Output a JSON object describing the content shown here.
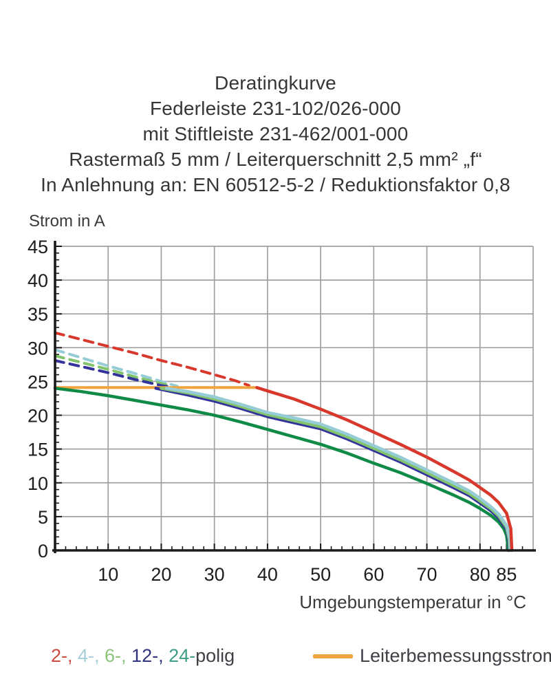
{
  "title_block": {
    "line1": "Deratingkurve",
    "line2": "Federleiste 231-102/026-000",
    "line3": "mit Stiftleiste 231-462/001-000",
    "line4": "Rastermaß 5 mm / Leiterquerschnitt 2,5 mm² „f“",
    "line5": "In Anlehnung an: EN 60512-5-2 / Reduktionsfaktor 0,8"
  },
  "chart_data": {
    "type": "line",
    "title": "Deratingkurve Federleiste 231-102/026-000 mit Stiftleiste 231-462/001-000",
    "xlabel": "Umgebungstemperatur in °C",
    "ylabel": "Strom in A",
    "xlim": [
      0,
      90
    ],
    "ylim": [
      0,
      45
    ],
    "grid": true,
    "legend_position": "below",
    "x_gridlines": [
      10,
      20,
      30,
      40,
      50,
      60,
      70,
      80,
      90
    ],
    "y_gridlines": [
      5,
      10,
      15,
      20,
      25,
      30,
      35,
      40,
      45
    ],
    "x_minor_step": 2,
    "y_minor_step": 1,
    "x_tick_labels": [
      {
        "v": 10,
        "label": "10"
      },
      {
        "v": 20,
        "label": "20"
      },
      {
        "v": 30,
        "label": "30"
      },
      {
        "v": 40,
        "label": "40"
      },
      {
        "v": 50,
        "label": "50"
      },
      {
        "v": 60,
        "label": "60"
      },
      {
        "v": 70,
        "label": "70"
      },
      {
        "v": 80,
        "label": "80"
      },
      {
        "v": 85,
        "label": "85"
      }
    ],
    "y_tick_labels": [
      {
        "v": 0,
        "label": "0"
      },
      {
        "v": 5,
        "label": "5"
      },
      {
        "v": 10,
        "label": "10"
      },
      {
        "v": 15,
        "label": "15"
      },
      {
        "v": 20,
        "label": "20"
      },
      {
        "v": 25,
        "label": "25"
      },
      {
        "v": 30,
        "label": "30"
      },
      {
        "v": 35,
        "label": "35"
      },
      {
        "v": 40,
        "label": "40"
      },
      {
        "v": 45,
        "label": "45"
      }
    ],
    "series": [
      {
        "name": "2-polig-dashed",
        "color": "#d8382c",
        "style": "dashed",
        "width": 4,
        "points": [
          [
            0,
            32.2
          ],
          [
            5,
            31.2
          ],
          [
            10,
            30.2
          ],
          [
            15,
            29.2
          ],
          [
            20,
            28.1
          ],
          [
            25,
            27.1
          ],
          [
            30,
            26.0
          ],
          [
            34,
            25.1
          ],
          [
            36.5,
            24.4
          ]
        ]
      },
      {
        "name": "4-polig-dashed",
        "color": "#96ccd5",
        "style": "dashed",
        "width": 4,
        "points": [
          [
            0,
            29.7
          ],
          [
            5,
            28.5
          ],
          [
            10,
            27.3
          ],
          [
            15,
            26.2
          ],
          [
            20,
            25.0
          ],
          [
            23,
            24.3
          ]
        ]
      },
      {
        "name": "6-polig-dashed",
        "color": "#82c36c",
        "style": "dashed",
        "width": 4,
        "points": [
          [
            0,
            28.8
          ],
          [
            5,
            27.8
          ],
          [
            10,
            26.8
          ],
          [
            15,
            25.7
          ],
          [
            20,
            24.7
          ],
          [
            22,
            24.3
          ]
        ]
      },
      {
        "name": "12-polig-dashed",
        "color": "#33339b",
        "style": "dashed",
        "width": 4,
        "points": [
          [
            0,
            28.1
          ],
          [
            5,
            27.2
          ],
          [
            10,
            26.3
          ],
          [
            15,
            25.3
          ],
          [
            20,
            24.4
          ],
          [
            21.5,
            24.2
          ]
        ]
      },
      {
        "name": "Leiterbemessungsstrom",
        "color": "#f0a440",
        "style": "solid",
        "width": 4,
        "points": [
          [
            0,
            24.1
          ],
          [
            38,
            24.1
          ]
        ]
      },
      {
        "name": "24-polig",
        "color": "#108a47",
        "style": "solid",
        "width": 4.5,
        "points": [
          [
            0,
            24
          ],
          [
            5,
            23.5
          ],
          [
            10,
            22.9
          ],
          [
            15,
            22.2
          ],
          [
            20,
            21.5
          ],
          [
            25,
            20.8
          ],
          [
            30,
            20.0
          ],
          [
            35,
            19.0
          ],
          [
            40,
            17.9
          ],
          [
            45,
            16.8
          ],
          [
            50,
            15.7
          ],
          [
            55,
            14.4
          ],
          [
            60,
            12.9
          ],
          [
            65,
            11.5
          ],
          [
            70,
            9.9
          ],
          [
            75,
            8.2
          ],
          [
            78,
            7.1
          ],
          [
            80,
            6.2
          ],
          [
            82,
            5.2
          ],
          [
            83.5,
            4.2
          ],
          [
            84.5,
            3.2
          ],
          [
            85,
            2.2
          ],
          [
            85.2,
            1.0
          ],
          [
            85.3,
            0
          ]
        ]
      },
      {
        "name": "12-polig",
        "color": "#33339b",
        "style": "solid",
        "width": 4.5,
        "points": [
          [
            19,
            24
          ],
          [
            25,
            23.0
          ],
          [
            30,
            22.1
          ],
          [
            35,
            21.0
          ],
          [
            40,
            19.8
          ],
          [
            45,
            18.9
          ],
          [
            50,
            18.0
          ],
          [
            55,
            16.5
          ],
          [
            60,
            14.8
          ],
          [
            65,
            13.1
          ],
          [
            70,
            11.2
          ],
          [
            75,
            9.3
          ],
          [
            78,
            8.1
          ],
          [
            80,
            7.0
          ],
          [
            82,
            5.9
          ],
          [
            83.5,
            4.8
          ],
          [
            85,
            3.1
          ],
          [
            85.4,
            1.5
          ],
          [
            85.5,
            0
          ]
        ]
      },
      {
        "name": "6-polig",
        "color": "#82c36c",
        "style": "solid",
        "width": 4.5,
        "points": [
          [
            20,
            24
          ],
          [
            25,
            23.3
          ],
          [
            30,
            22.4
          ],
          [
            35,
            21.3
          ],
          [
            40,
            20.1
          ],
          [
            45,
            19.2
          ],
          [
            50,
            18.3
          ],
          [
            55,
            16.8
          ],
          [
            60,
            15.1
          ],
          [
            65,
            13.4
          ],
          [
            70,
            11.5
          ],
          [
            75,
            9.6
          ],
          [
            78,
            8.4
          ],
          [
            80,
            7.3
          ],
          [
            82,
            6.2
          ],
          [
            83.5,
            5.1
          ],
          [
            85,
            3.4
          ],
          [
            85.5,
            1.6
          ],
          [
            85.6,
            0
          ]
        ]
      },
      {
        "name": "4-polig",
        "color": "#96ccd5",
        "style": "solid",
        "width": 4.5,
        "points": [
          [
            21,
            24
          ],
          [
            25,
            23.5
          ],
          [
            30,
            22.7
          ],
          [
            35,
            21.6
          ],
          [
            40,
            20.4
          ],
          [
            45,
            19.6
          ],
          [
            50,
            18.7
          ],
          [
            55,
            17.2
          ],
          [
            60,
            15.5
          ],
          [
            65,
            13.8
          ],
          [
            70,
            11.9
          ],
          [
            75,
            10.0
          ],
          [
            78,
            8.8
          ],
          [
            80,
            7.7
          ],
          [
            82,
            6.5
          ],
          [
            83.5,
            5.4
          ],
          [
            85,
            3.7
          ],
          [
            85.6,
            1.8
          ],
          [
            85.7,
            0
          ]
        ]
      },
      {
        "name": "2-polig",
        "color": "#d8382c",
        "style": "solid",
        "width": 4.5,
        "points": [
          [
            38,
            24.1
          ],
          [
            40,
            23.6
          ],
          [
            45,
            22.4
          ],
          [
            50,
            20.9
          ],
          [
            55,
            19.3
          ],
          [
            60,
            17.5
          ],
          [
            65,
            15.7
          ],
          [
            70,
            13.8
          ],
          [
            75,
            11.7
          ],
          [
            78,
            10.4
          ],
          [
            80,
            9.3
          ],
          [
            82,
            8.2
          ],
          [
            83.5,
            7.1
          ],
          [
            85,
            5.5
          ],
          [
            85.8,
            3.2
          ],
          [
            86,
            0
          ]
        ]
      }
    ],
    "rated_current_value": 24,
    "colors": {
      "grid": "#a0a0a0",
      "axis": "#1a1a1a",
      "tick_text": "#1d1d1d"
    }
  },
  "legend": {
    "pole_items": [
      {
        "label": "2-,",
        "color": "#cc4b41"
      },
      {
        "label": "4-,",
        "color": "#a5ced8"
      },
      {
        "label": "6-,",
        "color": "#8cc47c"
      },
      {
        "label": "12-,",
        "color": "#32337f"
      },
      {
        "label": "24-",
        "color": "#3d9e86"
      }
    ],
    "suffix": "polig",
    "rated_current_label": "Leiterbemessungsstrom",
    "rated_current_color": "#f0a440"
  }
}
